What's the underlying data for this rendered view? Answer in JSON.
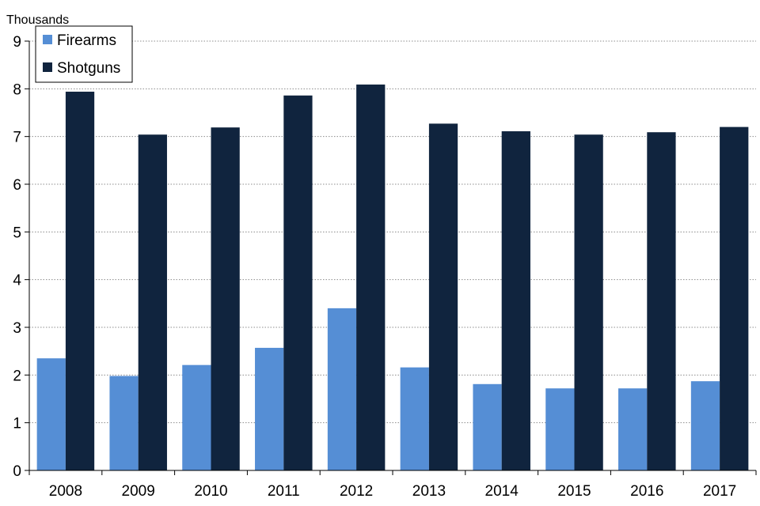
{
  "chart_data": {
    "type": "bar",
    "unit_label": "Thousands",
    "categories": [
      "2008",
      "2009",
      "2010",
      "2011",
      "2012",
      "2013",
      "2014",
      "2015",
      "2016",
      "2017"
    ],
    "series": [
      {
        "name": "Firearms",
        "color": "#558ed5",
        "values": [
          2.35,
          1.98,
          2.21,
          2.57,
          3.4,
          2.16,
          1.81,
          1.72,
          1.72,
          1.87
        ]
      },
      {
        "name": "Shotguns",
        "color": "#10243e",
        "values": [
          7.94,
          7.04,
          7.19,
          7.86,
          8.09,
          7.27,
          7.11,
          7.04,
          7.09,
          7.2
        ]
      }
    ],
    "ylim": [
      0,
      9
    ],
    "yticks": [
      "0",
      "1",
      "2",
      "3",
      "4",
      "5",
      "6",
      "7",
      "8",
      "9"
    ],
    "grid": true,
    "legend_position": "top-left"
  }
}
